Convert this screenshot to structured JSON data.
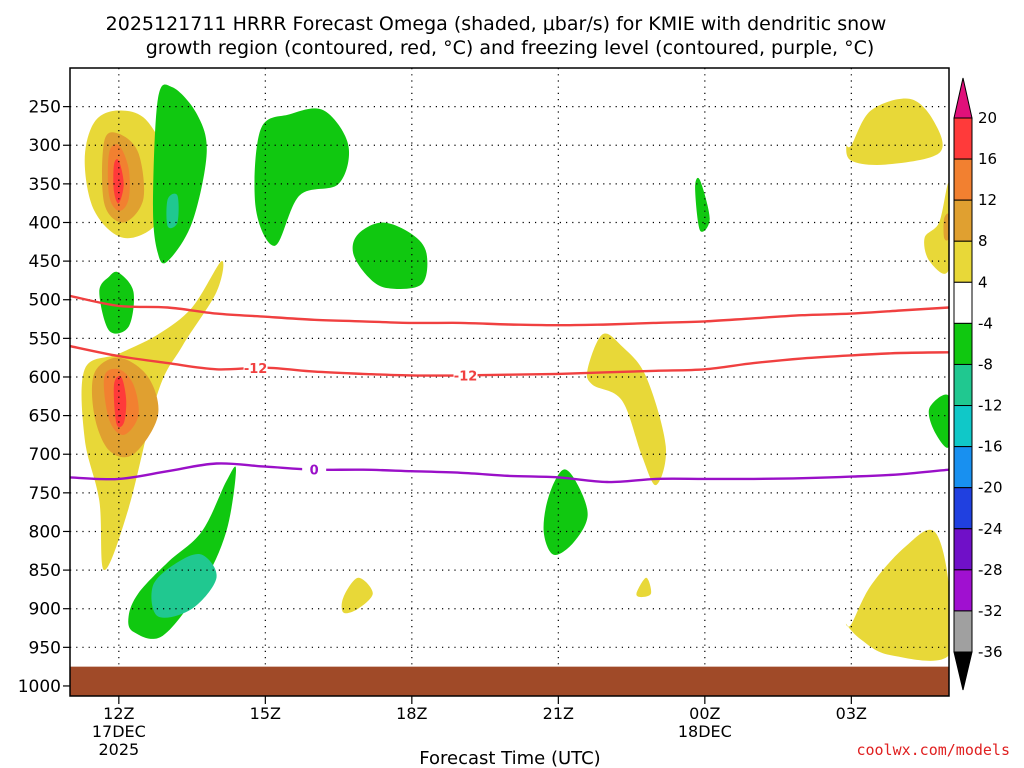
{
  "chart_data": {
    "type": "contour",
    "title": {
      "line1": "2025121711 HRRR Forecast Omega (shaded, μbar/s) for KMIE with dendritic snow",
      "line2": "growth region (contoured, red, °C) and freezing level (contoured, purple, °C)"
    },
    "xlabel": "Forecast Time (UTC)",
    "credit": "coolwx.com/models",
    "x_ticks": [
      {
        "label": "12Z",
        "hour": 12,
        "sub1": "17DEC",
        "sub2": "2025"
      },
      {
        "label": "15Z",
        "hour": 15
      },
      {
        "label": "18Z",
        "hour": 18
      },
      {
        "label": "21Z",
        "hour": 21
      },
      {
        "label": "00Z",
        "hour": 24,
        "sub1": "18DEC"
      },
      {
        "label": "03Z",
        "hour": 27
      }
    ],
    "x_range_hours": [
      11,
      29
    ],
    "y_ticks": [
      250,
      300,
      350,
      400,
      450,
      500,
      550,
      600,
      650,
      700,
      750,
      800,
      850,
      900,
      950,
      1000
    ],
    "y_range_hpa": [
      200,
      1013
    ],
    "surface_top_hpa": 975,
    "colorbar": {
      "labels": [
        "20",
        "16",
        "12",
        "8",
        "4",
        "-4",
        "-8",
        "-12",
        "-16",
        "-20",
        "-24",
        "-28",
        "-32",
        "-36"
      ],
      "colors": [
        "#ff3a3a",
        "#f28030",
        "#e0a030",
        "#e8d838",
        "#ffffff",
        "#10c810",
        "#20c890",
        "#10c8c8",
        "#1890f0",
        "#2040e0",
        "#7010c8",
        "#a010d0",
        "#a0a0a0"
      ],
      "top_triangle": "#e0107a",
      "bottom_triangle": "#000000"
    },
    "omega_regions": [
      {
        "color": "#e8d838",
        "t": [
          11.5,
          12.0,
          12.6,
          13.1,
          12.8,
          12.1,
          11.5,
          11.3
        ],
        "p": [
          270,
          255,
          270,
          340,
          400,
          420,
          385,
          320
        ]
      },
      {
        "color": "#e0a030",
        "t": [
          11.7,
          12.0,
          12.4,
          12.5,
          12.1,
          11.7
        ],
        "p": [
          295,
          285,
          310,
          370,
          400,
          375
        ]
      },
      {
        "color": "#f28030",
        "t": [
          11.8,
          12.0,
          12.2,
          12.2,
          12.0,
          11.8
        ],
        "p": [
          310,
          300,
          330,
          370,
          385,
          365
        ]
      },
      {
        "color": "#ff3a3a",
        "t": [
          11.9,
          12.0,
          12.1,
          12.0,
          11.9
        ],
        "p": [
          325,
          320,
          350,
          375,
          360
        ]
      },
      {
        "color": "#e8d838",
        "t": [
          11.3,
          12.0,
          12.8,
          13.5,
          14.1,
          14.0,
          13.3,
          12.8,
          12.2,
          11.7,
          11.6,
          11.3
        ],
        "p": [
          590,
          570,
          545,
          510,
          450,
          490,
          560,
          620,
          770,
          850,
          760,
          680
        ]
      },
      {
        "color": "#e0a030",
        "t": [
          11.5,
          12.0,
          12.6,
          12.8,
          12.3,
          11.8,
          11.5
        ],
        "p": [
          595,
          575,
          600,
          650,
          700,
          695,
          650
        ]
      },
      {
        "color": "#f28030",
        "t": [
          11.7,
          12.0,
          12.3,
          12.4,
          12.1,
          11.8
        ],
        "p": [
          600,
          590,
          610,
          650,
          675,
          655
        ]
      },
      {
        "color": "#ff3a3a",
        "t": [
          11.9,
          12.05,
          12.15,
          12.1,
          11.95
        ],
        "p": [
          610,
          600,
          630,
          660,
          660
        ]
      },
      {
        "color": "#10c810",
        "t": [
          11.6,
          11.8,
          12.0,
          12.3,
          12.2,
          11.8
        ],
        "p": [
          490,
          470,
          465,
          490,
          535,
          540
        ]
      },
      {
        "color": "#10c810",
        "t": [
          12.8,
          13.1,
          13.6,
          13.8,
          13.5,
          13.0,
          12.8,
          12.7
        ],
        "p": [
          240,
          225,
          260,
          310,
          400,
          450,
          440,
          380
        ]
      },
      {
        "color": "#20c890",
        "t": [
          13.0,
          13.2,
          13.2,
          13.0
        ],
        "p": [
          370,
          365,
          400,
          405
        ]
      },
      {
        "color": "#10c810",
        "t": [
          14.9,
          15.5,
          16.2,
          16.7,
          16.5,
          15.7,
          15.2,
          14.8
        ],
        "p": [
          280,
          260,
          255,
          300,
          350,
          365,
          430,
          380
        ]
      },
      {
        "color": "#10c810",
        "t": [
          16.9,
          17.4,
          18.0,
          18.3,
          18.2,
          17.5,
          17.1,
          16.8
        ],
        "p": [
          415,
          400,
          415,
          440,
          480,
          485,
          470,
          440
        ]
      },
      {
        "color": "#10c810",
        "t": [
          23.8,
          23.9,
          24.1,
          23.9
        ],
        "p": [
          355,
          345,
          395,
          410
        ]
      },
      {
        "color": "#10c810",
        "t": [
          12.4,
          13.0,
          13.7,
          14.2,
          14.4,
          14.2,
          13.7,
          12.9,
          12.3,
          12.2
        ],
        "p": [
          880,
          840,
          800,
          735,
          720,
          800,
          870,
          935,
          930,
          910
        ]
      },
      {
        "color": "#20c890",
        "t": [
          12.7,
          13.2,
          13.7,
          14.0,
          13.5,
          12.8
        ],
        "p": [
          870,
          840,
          830,
          860,
          900,
          910
        ]
      },
      {
        "color": "#10c810",
        "t": [
          20.8,
          21.1,
          21.4,
          21.6,
          21.3,
          20.9,
          20.7
        ],
        "p": [
          755,
          720,
          740,
          780,
          815,
          830,
          800
        ]
      },
      {
        "color": "#e8d838",
        "t": [
          16.6,
          16.9,
          17.2,
          16.9,
          16.6
        ],
        "p": [
          885,
          860,
          880,
          900,
          905
        ]
      },
      {
        "color": "#e8d838",
        "t": [
          21.6,
          21.9,
          22.3,
          22.8,
          23.2,
          23.0,
          22.7,
          22.3,
          21.7
        ],
        "p": [
          590,
          545,
          560,
          600,
          690,
          740,
          700,
          630,
          610
        ]
      },
      {
        "color": "#e8d838",
        "t": [
          22.6,
          22.8,
          22.9,
          22.7
        ],
        "p": [
          880,
          860,
          880,
          885
        ]
      },
      {
        "color": "#e8d838",
        "t": [
          27.0,
          27.4,
          28.2,
          28.7,
          28.8,
          27.7,
          27.0,
          26.9
        ],
        "p": [
          300,
          255,
          240,
          270,
          310,
          325,
          320,
          300
        ]
      },
      {
        "color": "#e8d838",
        "t": [
          28.8,
          29.0,
          29.0,
          28.6,
          28.5
        ],
        "p": [
          400,
          350,
          460,
          450,
          420
        ]
      },
      {
        "color": "#e0a030",
        "t": [
          28.9,
          29.0,
          29.0,
          28.9
        ],
        "p": [
          395,
          390,
          420,
          420
        ]
      },
      {
        "color": "#10c810",
        "t": [
          28.6,
          29.0,
          29.0,
          28.7
        ],
        "p": [
          640,
          625,
          690,
          670
        ]
      },
      {
        "color": "#e8d838",
        "t": [
          27.0,
          27.4,
          28.1,
          28.7,
          29.0,
          29.0,
          27.8,
          27.2,
          26.9
        ],
        "p": [
          920,
          870,
          820,
          800,
          870,
          960,
          960,
          940,
          920
        ]
      }
    ],
    "contours": [
      {
        "name": "upper -12 °C",
        "color": "#f04040",
        "t": [
          11,
          12,
          13,
          14,
          15,
          16,
          17,
          18,
          19,
          20,
          21,
          22,
          23,
          24,
          25,
          26,
          27,
          28,
          29
        ],
        "p": [
          495,
          508,
          510,
          518,
          522,
          526,
          528,
          530,
          530,
          532,
          533,
          532,
          530,
          528,
          524,
          520,
          518,
          514,
          510
        ]
      },
      {
        "name": "lower -12 °C",
        "color": "#f04040",
        "label": "-12",
        "label_at_hours": [
          14.8,
          19.1
        ],
        "t": [
          11,
          12,
          13,
          14,
          15,
          16,
          17,
          18,
          19,
          20,
          21,
          22,
          23,
          24,
          25,
          26,
          27,
          28,
          29
        ],
        "p": [
          560,
          573,
          582,
          590,
          588,
          593,
          596,
          598,
          598,
          597,
          596,
          594,
          592,
          590,
          582,
          576,
          572,
          569,
          568
        ]
      },
      {
        "name": "freezing level 0 °C",
        "color": "#9a10c8",
        "label": "0",
        "label_at_hours": [
          16.0
        ],
        "t": [
          11,
          12,
          13,
          14,
          15,
          16,
          17,
          18,
          19,
          20,
          21,
          22,
          23,
          24,
          25,
          26,
          27,
          28,
          29
        ],
        "p": [
          730,
          732,
          722,
          712,
          716,
          720,
          720,
          722,
          724,
          728,
          730,
          736,
          732,
          732,
          732,
          731,
          729,
          726,
          720
        ]
      }
    ]
  }
}
